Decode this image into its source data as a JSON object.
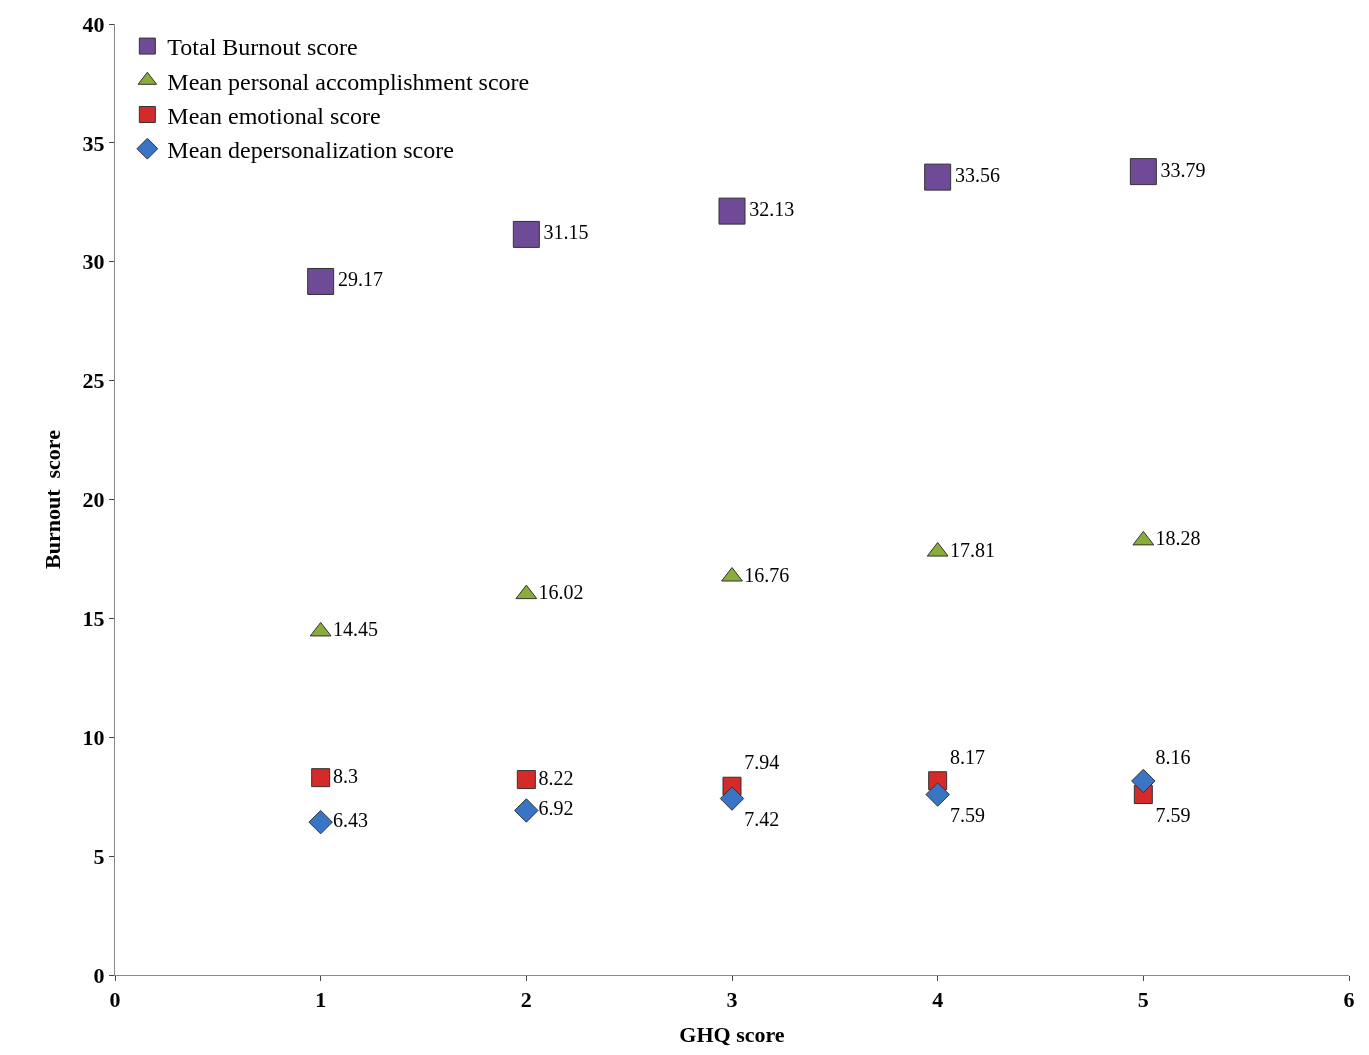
{
  "chart_data": {
    "type": "scatter",
    "xlabel": "GHQ score",
    "ylabel": "Burnout  score",
    "x": [
      1,
      2,
      3,
      4,
      5
    ],
    "series": [
      {
        "name": "Total Burnout score",
        "color": "#6f4a96",
        "marker": "square",
        "values": [
          29.17,
          31.15,
          32.13,
          33.56,
          33.79
        ]
      },
      {
        "name": "Mean personal accomplishment score",
        "color": "#8aac3c",
        "marker": "triangle",
        "values": [
          14.45,
          16.02,
          16.76,
          17.81,
          18.28
        ]
      },
      {
        "name": "Mean emotional score",
        "color": "#d42a2a",
        "marker": "square",
        "values": [
          8.3,
          8.22,
          7.94,
          8.17,
          7.59
        ]
      },
      {
        "name": "Mean depersonalization score",
        "color": "#3a74c4",
        "marker": "diamond",
        "values": [
          6.43,
          6.92,
          7.42,
          7.59,
          8.16
        ]
      }
    ],
    "xlim": [
      0,
      6
    ],
    "xticks": [
      0,
      1,
      2,
      3,
      4,
      5,
      6
    ],
    "ylim": [
      0,
      40
    ],
    "yticks": [
      0,
      5,
      10,
      15,
      20,
      25,
      30,
      35,
      40
    ],
    "legend": "top left",
    "data_labels": true
  }
}
